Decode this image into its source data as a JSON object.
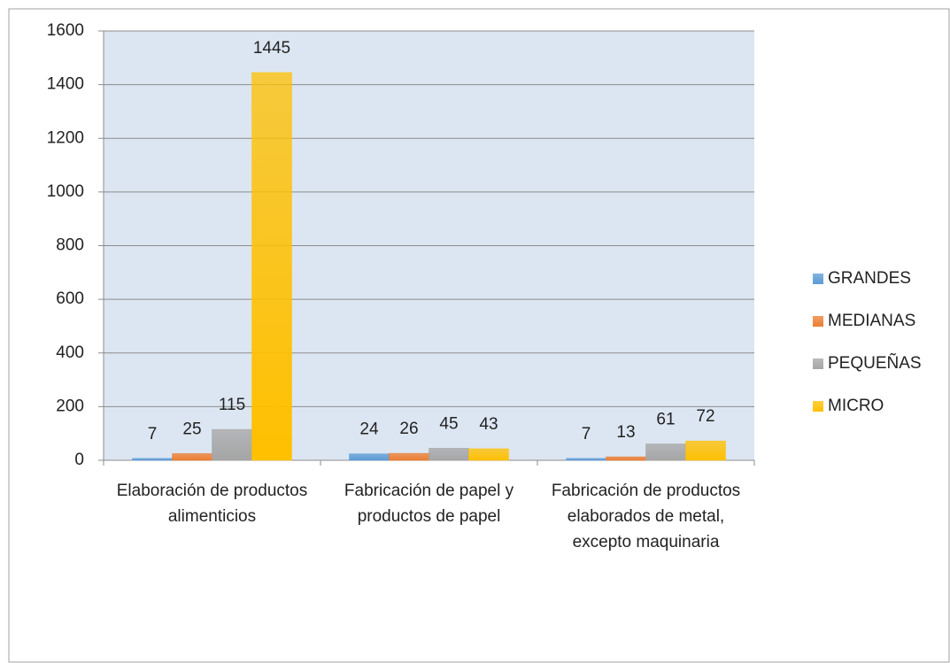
{
  "chart_data": {
    "type": "bar",
    "categories": [
      "Elaboración de productos alimenticios",
      "Fabricación de papel y productos de papel",
      "Fabricación de productos elaborados de metal, excepto maquinaria"
    ],
    "series": [
      {
        "name": "GRANDES",
        "color": "#5b9bd5",
        "values": [
          7,
          24,
          7
        ]
      },
      {
        "name": "MEDIANAS",
        "color": "#ed7d31",
        "values": [
          25,
          26,
          13
        ]
      },
      {
        "name": "PEQUEÑAS",
        "color": "#a5a5a5",
        "values": [
          115,
          45,
          61
        ]
      },
      {
        "name": "MICRO",
        "color": "#ffc000",
        "values": [
          1445,
          43,
          72
        ]
      }
    ],
    "ylim": [
      0,
      1600
    ],
    "yticks": [
      0,
      200,
      400,
      600,
      800,
      1000,
      1200,
      1400,
      1600
    ],
    "grid": true,
    "legend": "right"
  }
}
